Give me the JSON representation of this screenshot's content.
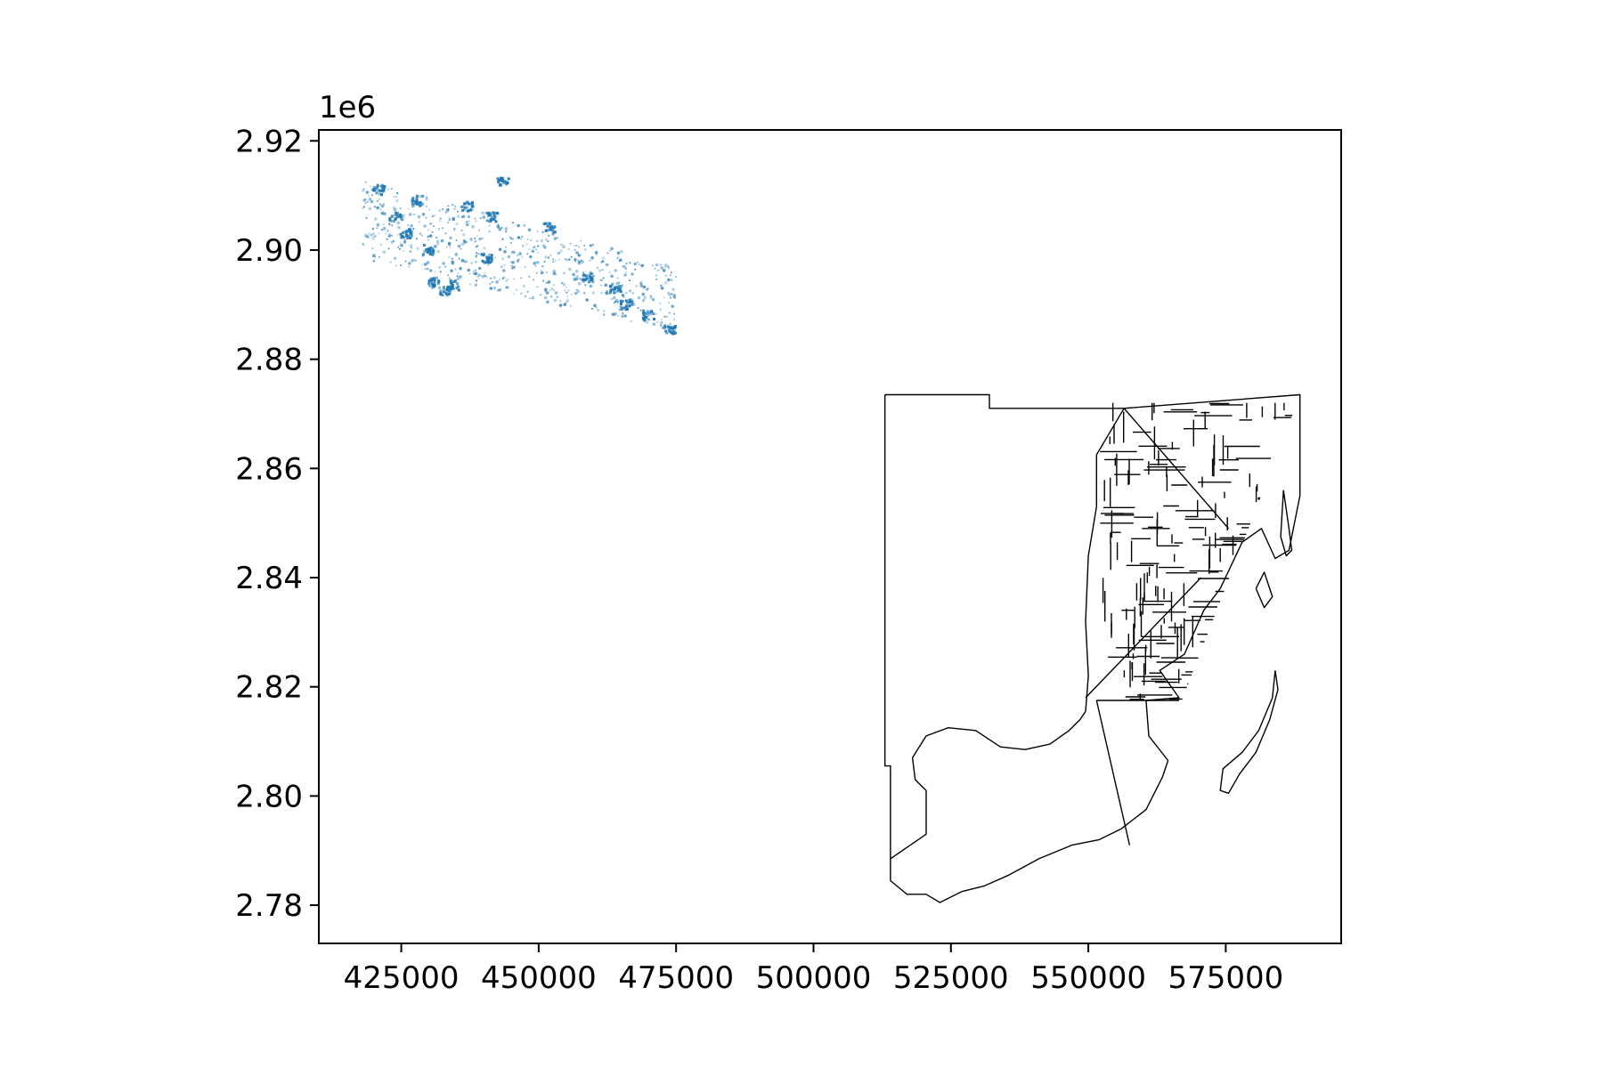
{
  "chart_data": {
    "type": "scatter",
    "title": "",
    "xlabel": "",
    "ylabel": "",
    "xlim": [
      410000,
      596000
    ],
    "ylim": [
      2773000,
      2922000
    ],
    "y_offset_label": "1e6",
    "x_ticks": [
      {
        "value": 425000,
        "label": "425000"
      },
      {
        "value": 450000,
        "label": "450000"
      },
      {
        "value": 475000,
        "label": "475000"
      },
      {
        "value": 500000,
        "label": "500000"
      },
      {
        "value": 525000,
        "label": "525000"
      },
      {
        "value": 550000,
        "label": "550000"
      },
      {
        "value": 575000,
        "label": "575000"
      }
    ],
    "y_ticks": [
      {
        "value": 2780000,
        "label": "2.78"
      },
      {
        "value": 2800000,
        "label": "2.80"
      },
      {
        "value": 2820000,
        "label": "2.82"
      },
      {
        "value": 2840000,
        "label": "2.84"
      },
      {
        "value": 2860000,
        "label": "2.86"
      },
      {
        "value": 2880000,
        "label": "2.88"
      },
      {
        "value": 2900000,
        "label": "2.90"
      },
      {
        "value": 2920000,
        "label": "2.92"
      }
    ],
    "grid": false,
    "series": [
      {
        "kind": "points",
        "color": "#1f77b4",
        "extent_x": [
          418000,
          475000
        ],
        "extent_y": [
          2885000,
          2916000
        ],
        "clusters": [
          {
            "x": 421000,
            "y": 2911000
          },
          {
            "x": 424000,
            "y": 2906000
          },
          {
            "x": 426000,
            "y": 2903000
          },
          {
            "x": 428000,
            "y": 2909000
          },
          {
            "x": 430000,
            "y": 2900000
          },
          {
            "x": 431000,
            "y": 2894000
          },
          {
            "x": 433000,
            "y": 2892500
          },
          {
            "x": 434500,
            "y": 2893500
          },
          {
            "x": 437000,
            "y": 2908000
          },
          {
            "x": 440500,
            "y": 2898500
          },
          {
            "x": 441500,
            "y": 2906000
          },
          {
            "x": 443500,
            "y": 2912500
          },
          {
            "x": 452000,
            "y": 2904000
          },
          {
            "x": 459000,
            "y": 2895000
          },
          {
            "x": 464000,
            "y": 2893000
          },
          {
            "x": 466000,
            "y": 2890000
          },
          {
            "x": 470000,
            "y": 2888000
          },
          {
            "x": 474000,
            "y": 2885500
          }
        ]
      },
      {
        "kind": "boundaries",
        "color": "#000000",
        "extent_x": [
          513000,
          589000
        ],
        "extent_y": [
          2780000,
          2873500
        ]
      }
    ]
  }
}
